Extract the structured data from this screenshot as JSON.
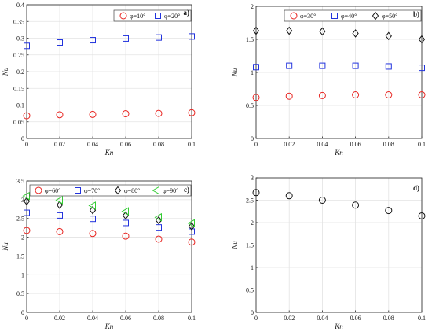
{
  "chart_data": [
    {
      "type": "scatter",
      "panel_label": "a)",
      "xlabel": "Kn",
      "ylabel": "Nu",
      "xlim": [
        0,
        0.1
      ],
      "ylim": [
        0,
        0.4
      ],
      "x": [
        0,
        0.02,
        0.04,
        0.06,
        0.08,
        0.1
      ],
      "x_ticks": [
        "0",
        "0.02",
        "0.04",
        "0.06",
        "0.08",
        "0.1"
      ],
      "y_ticks": [
        "0",
        "0.05",
        "0.1",
        "0.15",
        "0.2",
        "0.25",
        "0.3",
        "0.35",
        "0.4"
      ],
      "y_tick_values": [
        0,
        0.05,
        0.1,
        0.15,
        0.2,
        0.25,
        0.3,
        0.35,
        0.4
      ],
      "grid": true,
      "legend_position": "top-right",
      "series": [
        {
          "name": "φ=10°",
          "marker": "circle",
          "color": "#e8231f",
          "values": [
            0.068,
            0.071,
            0.072,
            0.074,
            0.075,
            0.077
          ]
        },
        {
          "name": "φ=20°",
          "marker": "square",
          "color": "#2233dd",
          "values": [
            0.277,
            0.287,
            0.294,
            0.299,
            0.302,
            0.305
          ]
        }
      ]
    },
    {
      "type": "scatter",
      "panel_label": "b)",
      "xlabel": "Kn",
      "ylabel": "Nu",
      "xlim": [
        0,
        0.1
      ],
      "ylim": [
        0,
        2
      ],
      "x": [
        0,
        0.02,
        0.04,
        0.06,
        0.08,
        0.1
      ],
      "x_ticks": [
        "0",
        "0.02",
        "0.04",
        "0.06",
        "0.08",
        "0.1"
      ],
      "y_ticks": [
        "0",
        "0.5",
        "1",
        "1.5",
        "2"
      ],
      "y_tick_values": [
        0,
        0.5,
        1,
        1.5,
        2
      ],
      "grid": true,
      "legend_position": "top-right",
      "series": [
        {
          "name": "φ=30°",
          "marker": "circle",
          "color": "#e8231f",
          "values": [
            0.62,
            0.64,
            0.65,
            0.66,
            0.66,
            0.66
          ]
        },
        {
          "name": "φ=40°",
          "marker": "square",
          "color": "#2233dd",
          "values": [
            1.08,
            1.1,
            1.1,
            1.1,
            1.09,
            1.07
          ]
        },
        {
          "name": "φ=50°",
          "marker": "diamond",
          "color": "#111111",
          "values": [
            1.63,
            1.63,
            1.62,
            1.59,
            1.55,
            1.5
          ]
        }
      ]
    },
    {
      "type": "scatter",
      "panel_label": "c)",
      "xlabel": "Kn",
      "ylabel": "Nu",
      "xlim": [
        0,
        0.1
      ],
      "ylim": [
        0,
        3.5
      ],
      "x": [
        0,
        0.02,
        0.04,
        0.06,
        0.08,
        0.1
      ],
      "x_ticks": [
        "0",
        "0.02",
        "0.04",
        "0.06",
        "0.08",
        "0.1"
      ],
      "y_ticks": [
        "0",
        "0.5",
        "1",
        "1.5",
        "2",
        "2.5",
        "3",
        "3.5"
      ],
      "y_tick_values": [
        0,
        0.5,
        1,
        1.5,
        2,
        2.5,
        3,
        3.5
      ],
      "grid": true,
      "legend_position": "top",
      "series": [
        {
          "name": "φ=60°",
          "marker": "circle",
          "color": "#e8231f",
          "values": [
            2.18,
            2.15,
            2.1,
            2.03,
            1.95,
            1.87
          ]
        },
        {
          "name": "φ=70°",
          "marker": "square",
          "color": "#2233dd",
          "values": [
            2.65,
            2.58,
            2.49,
            2.38,
            2.26,
            2.15
          ]
        },
        {
          "name": "φ=80°",
          "marker": "diamond",
          "color": "#111111",
          "values": [
            2.96,
            2.86,
            2.72,
            2.58,
            2.45,
            2.29
          ]
        },
        {
          "name": "φ=90°",
          "marker": "triangle-left",
          "color": "#33cc33",
          "values": [
            3.1,
            2.99,
            2.84,
            2.69,
            2.53,
            2.37
          ]
        }
      ]
    },
    {
      "type": "scatter",
      "panel_label": "d)",
      "xlabel": "Kn",
      "ylabel": "Nu",
      "xlim": [
        0,
        0.1
      ],
      "ylim": [
        0,
        3
      ],
      "x": [
        0,
        0.02,
        0.04,
        0.06,
        0.08,
        0.1
      ],
      "x_ticks": [
        "0",
        "0.02",
        "0.04",
        "0.06",
        "0.08",
        "0.1"
      ],
      "y_ticks": [
        "0",
        "0.5",
        "1",
        "1.5",
        "2",
        "2.5",
        "3"
      ],
      "y_tick_values": [
        0,
        0.5,
        1,
        1.5,
        2,
        2.5,
        3
      ],
      "grid": true,
      "legend_position": "none",
      "series": [
        {
          "marker": "circle",
          "color": "#111111",
          "values": [
            2.67,
            2.6,
            2.5,
            2.39,
            2.27,
            2.15
          ]
        }
      ]
    }
  ]
}
